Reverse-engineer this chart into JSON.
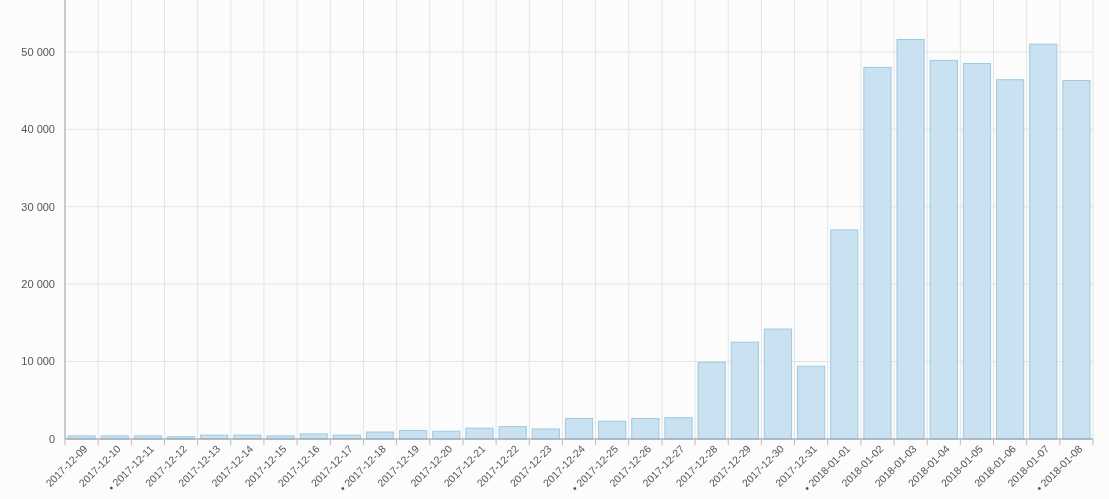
{
  "chart_data": {
    "type": "bar",
    "categories": [
      "2017-12-09",
      "2017-12-10",
      "• 2017-12-11",
      "2017-12-12",
      "2017-12-13",
      "2017-12-14",
      "2017-12-15",
      "2017-12-16",
      "2017-12-17",
      "• 2017-12-18",
      "2017-12-19",
      "2017-12-20",
      "2017-12-21",
      "2017-12-22",
      "2017-12-23",
      "2017-12-24",
      "• 2017-12-25",
      "2017-12-26",
      "2017-12-27",
      "2017-12-28",
      "2017-12-29",
      "2017-12-30",
      "2017-12-31",
      "• 2018-01-01",
      "2018-01-02",
      "2018-01-03",
      "2018-01-04",
      "2018-01-05",
      "2018-01-06",
      "2018-01-07",
      "• 2018-01-08"
    ],
    "values": [
      400,
      400,
      400,
      300,
      500,
      500,
      400,
      650,
      500,
      900,
      1100,
      1000,
      1400,
      1600,
      1300,
      2650,
      2300,
      2650,
      2750,
      9900,
      12500,
      14200,
      9400,
      27000,
      48000,
      51600,
      48900,
      48500,
      46400,
      51000,
      46300
    ],
    "color": "#c9e1f0",
    "ylim": [
      0,
      56700
    ],
    "yticks": [
      0,
      {
        "value": 10000,
        "label": "10 000"
      },
      {
        "value": 20000,
        "label": "20 000"
      },
      {
        "value": 30000,
        "label": "30 000"
      },
      {
        "value": 40000,
        "label": "40 000"
      },
      {
        "value": 50000,
        "label": "50 000"
      }
    ],
    "grid": true
  }
}
